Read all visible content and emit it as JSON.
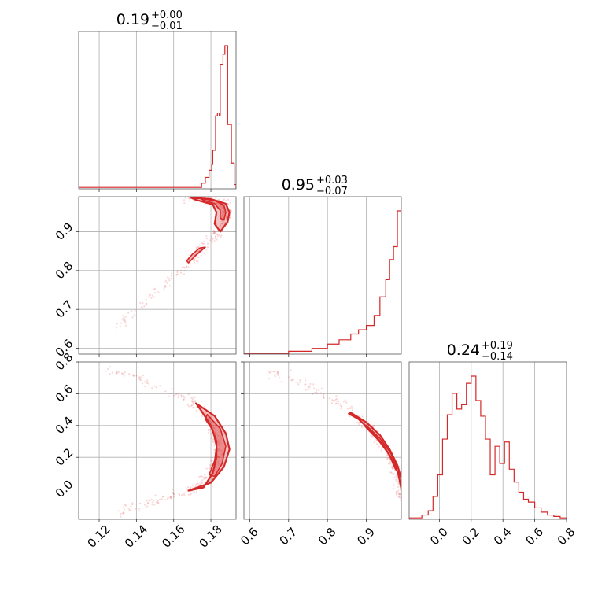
{
  "chart_data": {
    "type": "corner",
    "color": "#d62728",
    "grid": true,
    "parameters": [
      {
        "title_value": "0.19",
        "plus": "+0.00",
        "minus": "−0.01",
        "range": [
          0.109,
          0.1935
        ],
        "ticks": [
          0.12,
          0.14,
          0.16,
          0.18
        ],
        "tick_labels": [
          "0.12",
          "0.14",
          "0.16",
          "0.18"
        ]
      },
      {
        "title_value": "0.95",
        "plus": "+0.03",
        "minus": "−0.07",
        "range": [
          0.585,
          0.99
        ],
        "ticks": [
          0.6,
          0.7,
          0.8,
          0.9
        ],
        "tick_labels": [
          "0.6",
          "0.7",
          "0.8",
          "0.9"
        ]
      },
      {
        "title_value": "0.24",
        "plus": "+0.19",
        "minus": "−0.14",
        "range": [
          -0.19,
          0.8
        ],
        "ticks": [
          0.0,
          0.2,
          0.4,
          0.6,
          0.8
        ],
        "tick_labels": [
          "0.0",
          "0.2",
          "0.4",
          "0.6",
          "0.8"
        ]
      }
    ],
    "histograms": [
      {
        "param": 0,
        "bin_edges": [
          0.109,
          0.175,
          0.177,
          0.179,
          0.1805,
          0.181,
          0.1825,
          0.1835,
          0.1845,
          0.185,
          0.1865,
          0.1875,
          0.189,
          0.191,
          0.1925,
          0.1935
        ],
        "counts": [
          0.01,
          0.04,
          0.08,
          0.13,
          0.17,
          0.27,
          0.51,
          0.53,
          0.51,
          0.87,
          0.94,
          1.0,
          0.45,
          0.18,
          0.03
        ]
      },
      {
        "param": 1,
        "bin_edges": [
          0.585,
          0.7,
          0.76,
          0.8,
          0.83,
          0.86,
          0.88,
          0.9,
          0.92,
          0.935,
          0.95,
          0.96,
          0.97,
          0.98,
          0.99
        ],
        "counts": [
          0.005,
          0.02,
          0.04,
          0.07,
          0.1,
          0.14,
          0.17,
          0.2,
          0.27,
          0.4,
          0.52,
          0.66,
          0.75,
          1.0
        ]
      },
      {
        "param": 2,
        "bin_edges": [
          -0.19,
          -0.11,
          -0.07,
          -0.04,
          -0.01,
          0.02,
          0.05,
          0.08,
          0.11,
          0.14,
          0.17,
          0.2,
          0.23,
          0.26,
          0.29,
          0.32,
          0.35,
          0.38,
          0.41,
          0.44,
          0.47,
          0.5,
          0.53,
          0.56,
          0.6,
          0.64,
          0.68,
          0.72,
          0.76,
          0.8
        ],
        "counts": [
          0.01,
          0.03,
          0.06,
          0.16,
          0.31,
          0.56,
          0.73,
          0.88,
          0.77,
          0.8,
          0.95,
          1.0,
          0.83,
          0.72,
          0.56,
          0.31,
          0.51,
          0.39,
          0.54,
          0.35,
          0.26,
          0.19,
          0.14,
          0.12,
          0.08,
          0.05,
          0.03,
          0.02,
          0.01
        ]
      }
    ],
    "scatter_panels": [
      {
        "x_param": 0,
        "y_param": 1,
        "ridge": [
          [
            0.128,
            0.645
          ],
          [
            0.14,
            0.7
          ],
          [
            0.155,
            0.76
          ],
          [
            0.165,
            0.805
          ],
          [
            0.172,
            0.84
          ],
          [
            0.178,
            0.87
          ],
          [
            0.184,
            0.9
          ],
          [
            0.188,
            0.93
          ],
          [
            0.189,
            0.95
          ],
          [
            0.187,
            0.97
          ],
          [
            0.178,
            0.985
          ],
          [
            0.165,
            0.988
          ]
        ],
        "contours": [
          [
            [
              0.169,
              0.988
            ],
            [
              0.18,
              0.984
            ],
            [
              0.188,
              0.972
            ],
            [
              0.19,
              0.95
            ],
            [
              0.189,
              0.925
            ],
            [
              0.185,
              0.9
            ],
            [
              0.182,
              0.92
            ],
            [
              0.183,
              0.95
            ],
            [
              0.181,
              0.97
            ],
            [
              0.172,
              0.982
            ]
          ],
          [
            [
              0.174,
              0.986
            ],
            [
              0.182,
              0.98
            ],
            [
              0.187,
              0.968
            ],
            [
              0.188,
              0.95
            ],
            [
              0.187,
              0.93
            ],
            [
              0.185,
              0.935
            ],
            [
              0.185,
              0.955
            ],
            [
              0.182,
              0.972
            ],
            [
              0.176,
              0.981
            ]
          ],
          [
            [
              0.168,
              0.82
            ],
            [
              0.172,
              0.84
            ],
            [
              0.177,
              0.86
            ],
            [
              0.174,
              0.858
            ],
            [
              0.17,
              0.842
            ],
            [
              0.167,
              0.825
            ]
          ]
        ]
      },
      {
        "x_param": 0,
        "y_param": 2,
        "ridge": [
          [
            0.123,
            0.75
          ],
          [
            0.14,
            0.7
          ],
          [
            0.158,
            0.62
          ],
          [
            0.17,
            0.55
          ],
          [
            0.178,
            0.45
          ],
          [
            0.183,
            0.32
          ],
          [
            0.184,
            0.25
          ],
          [
            0.181,
            0.15
          ],
          [
            0.176,
            0.05
          ],
          [
            0.168,
            -0.02
          ],
          [
            0.15,
            -0.08
          ],
          [
            0.13,
            -0.15
          ]
        ],
        "contours": [
          [
            [
              0.172,
              0.54
            ],
            [
              0.182,
              0.46
            ],
            [
              0.188,
              0.35
            ],
            [
              0.19,
              0.25
            ],
            [
              0.187,
              0.14
            ],
            [
              0.18,
              0.04
            ],
            [
              0.168,
              -0.01
            ],
            [
              0.176,
              0.01
            ],
            [
              0.181,
              0.1
            ],
            [
              0.183,
              0.2
            ],
            [
              0.183,
              0.3
            ],
            [
              0.18,
              0.4
            ],
            [
              0.175,
              0.49
            ]
          ],
          [
            [
              0.178,
              0.47
            ],
            [
              0.185,
              0.38
            ],
            [
              0.188,
              0.27
            ],
            [
              0.186,
              0.16
            ],
            [
              0.182,
              0.08
            ],
            [
              0.179,
              0.09
            ],
            [
              0.182,
              0.18
            ],
            [
              0.183,
              0.27
            ],
            [
              0.181,
              0.37
            ],
            [
              0.177,
              0.44
            ]
          ]
        ]
      },
      {
        "x_param": 1,
        "y_param": 2,
        "ridge": [
          [
            0.64,
            0.74
          ],
          [
            0.7,
            0.7
          ],
          [
            0.76,
            0.64
          ],
          [
            0.82,
            0.56
          ],
          [
            0.87,
            0.47
          ],
          [
            0.91,
            0.38
          ],
          [
            0.94,
            0.28
          ],
          [
            0.965,
            0.18
          ],
          [
            0.98,
            0.08
          ],
          [
            0.988,
            -0.01
          ],
          [
            0.99,
            -0.06
          ]
        ],
        "contours": [
          [
            [
              0.86,
              0.48
            ],
            [
              0.9,
              0.42
            ],
            [
              0.935,
              0.34
            ],
            [
              0.96,
              0.25
            ],
            [
              0.98,
              0.15
            ],
            [
              0.992,
              0.05
            ],
            [
              0.99,
              0.0
            ],
            [
              0.982,
              0.1
            ],
            [
              0.965,
              0.19
            ],
            [
              0.945,
              0.27
            ],
            [
              0.915,
              0.36
            ],
            [
              0.88,
              0.44
            ],
            [
              0.855,
              0.475
            ]
          ],
          [
            [
              0.9,
              0.4
            ],
            [
              0.935,
              0.32
            ],
            [
              0.962,
              0.23
            ],
            [
              0.98,
              0.13
            ],
            [
              0.975,
              0.125
            ],
            [
              0.958,
              0.22
            ],
            [
              0.93,
              0.31
            ],
            [
              0.897,
              0.393
            ]
          ]
        ]
      }
    ]
  }
}
